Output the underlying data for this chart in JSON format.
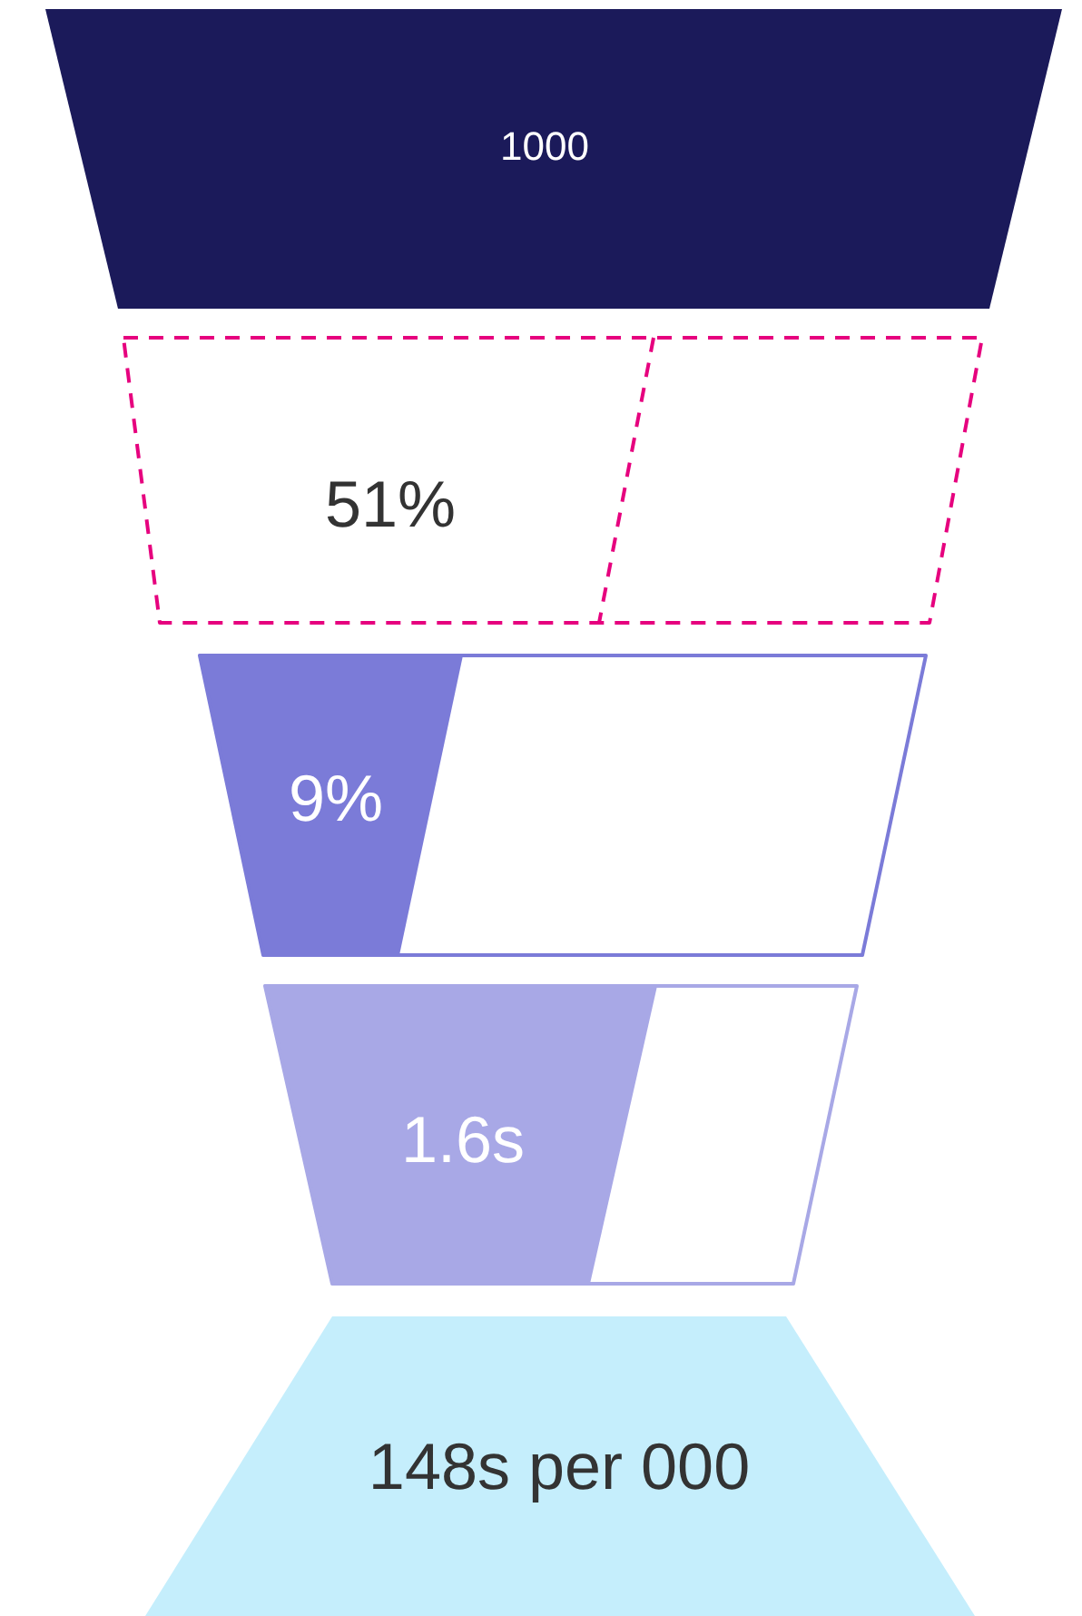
{
  "chart_data": {
    "type": "other",
    "categories": [
      null,
      null,
      null,
      null,
      null
    ],
    "values": [
      1000,
      51,
      9,
      1.6,
      148
    ],
    "value_labels": [
      "1000",
      "51%",
      "9%",
      "1.6s",
      "148s per 000"
    ],
    "colors": [
      "#1b1a5a",
      "#e6007e",
      "#7b7bd8",
      "#a8a8e6",
      "#c5eefc"
    ]
  }
}
